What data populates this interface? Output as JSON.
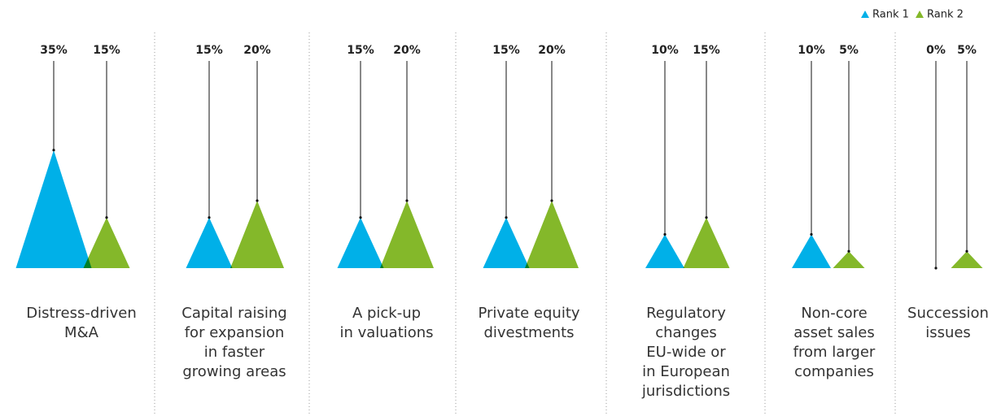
{
  "chart_data": {
    "type": "triangle",
    "categories": [
      [
        "Distress-driven",
        "M&A"
      ],
      [
        "Capital raising",
        "for expansion",
        "in faster",
        "growing areas"
      ],
      [
        "A pick-up",
        "in valuations"
      ],
      [
        "Private equity",
        "divestments"
      ],
      [
        "Regulatory",
        "changes",
        "EU-wide or",
        "in European",
        "jurisdictions"
      ],
      [
        "Non-core",
        "asset sales",
        "from larger",
        "companies"
      ],
      [
        "Succession",
        "issues"
      ]
    ],
    "series": [
      {
        "name": "Rank 1",
        "color": "#00b0e8",
        "values": [
          35,
          15,
          15,
          15,
          10,
          10,
          0
        ],
        "value_labels": [
          "35%",
          "15%",
          "15%",
          "15%",
          "10%",
          "10%",
          "0%"
        ]
      },
      {
        "name": "Rank 2",
        "color": "#84b82a",
        "values": [
          15,
          20,
          20,
          20,
          15,
          5,
          5
        ],
        "value_labels": [
          "15%",
          "20%",
          "20%",
          "20%",
          "15%",
          "5%",
          "5%"
        ]
      }
    ],
    "legend": "top-right"
  }
}
